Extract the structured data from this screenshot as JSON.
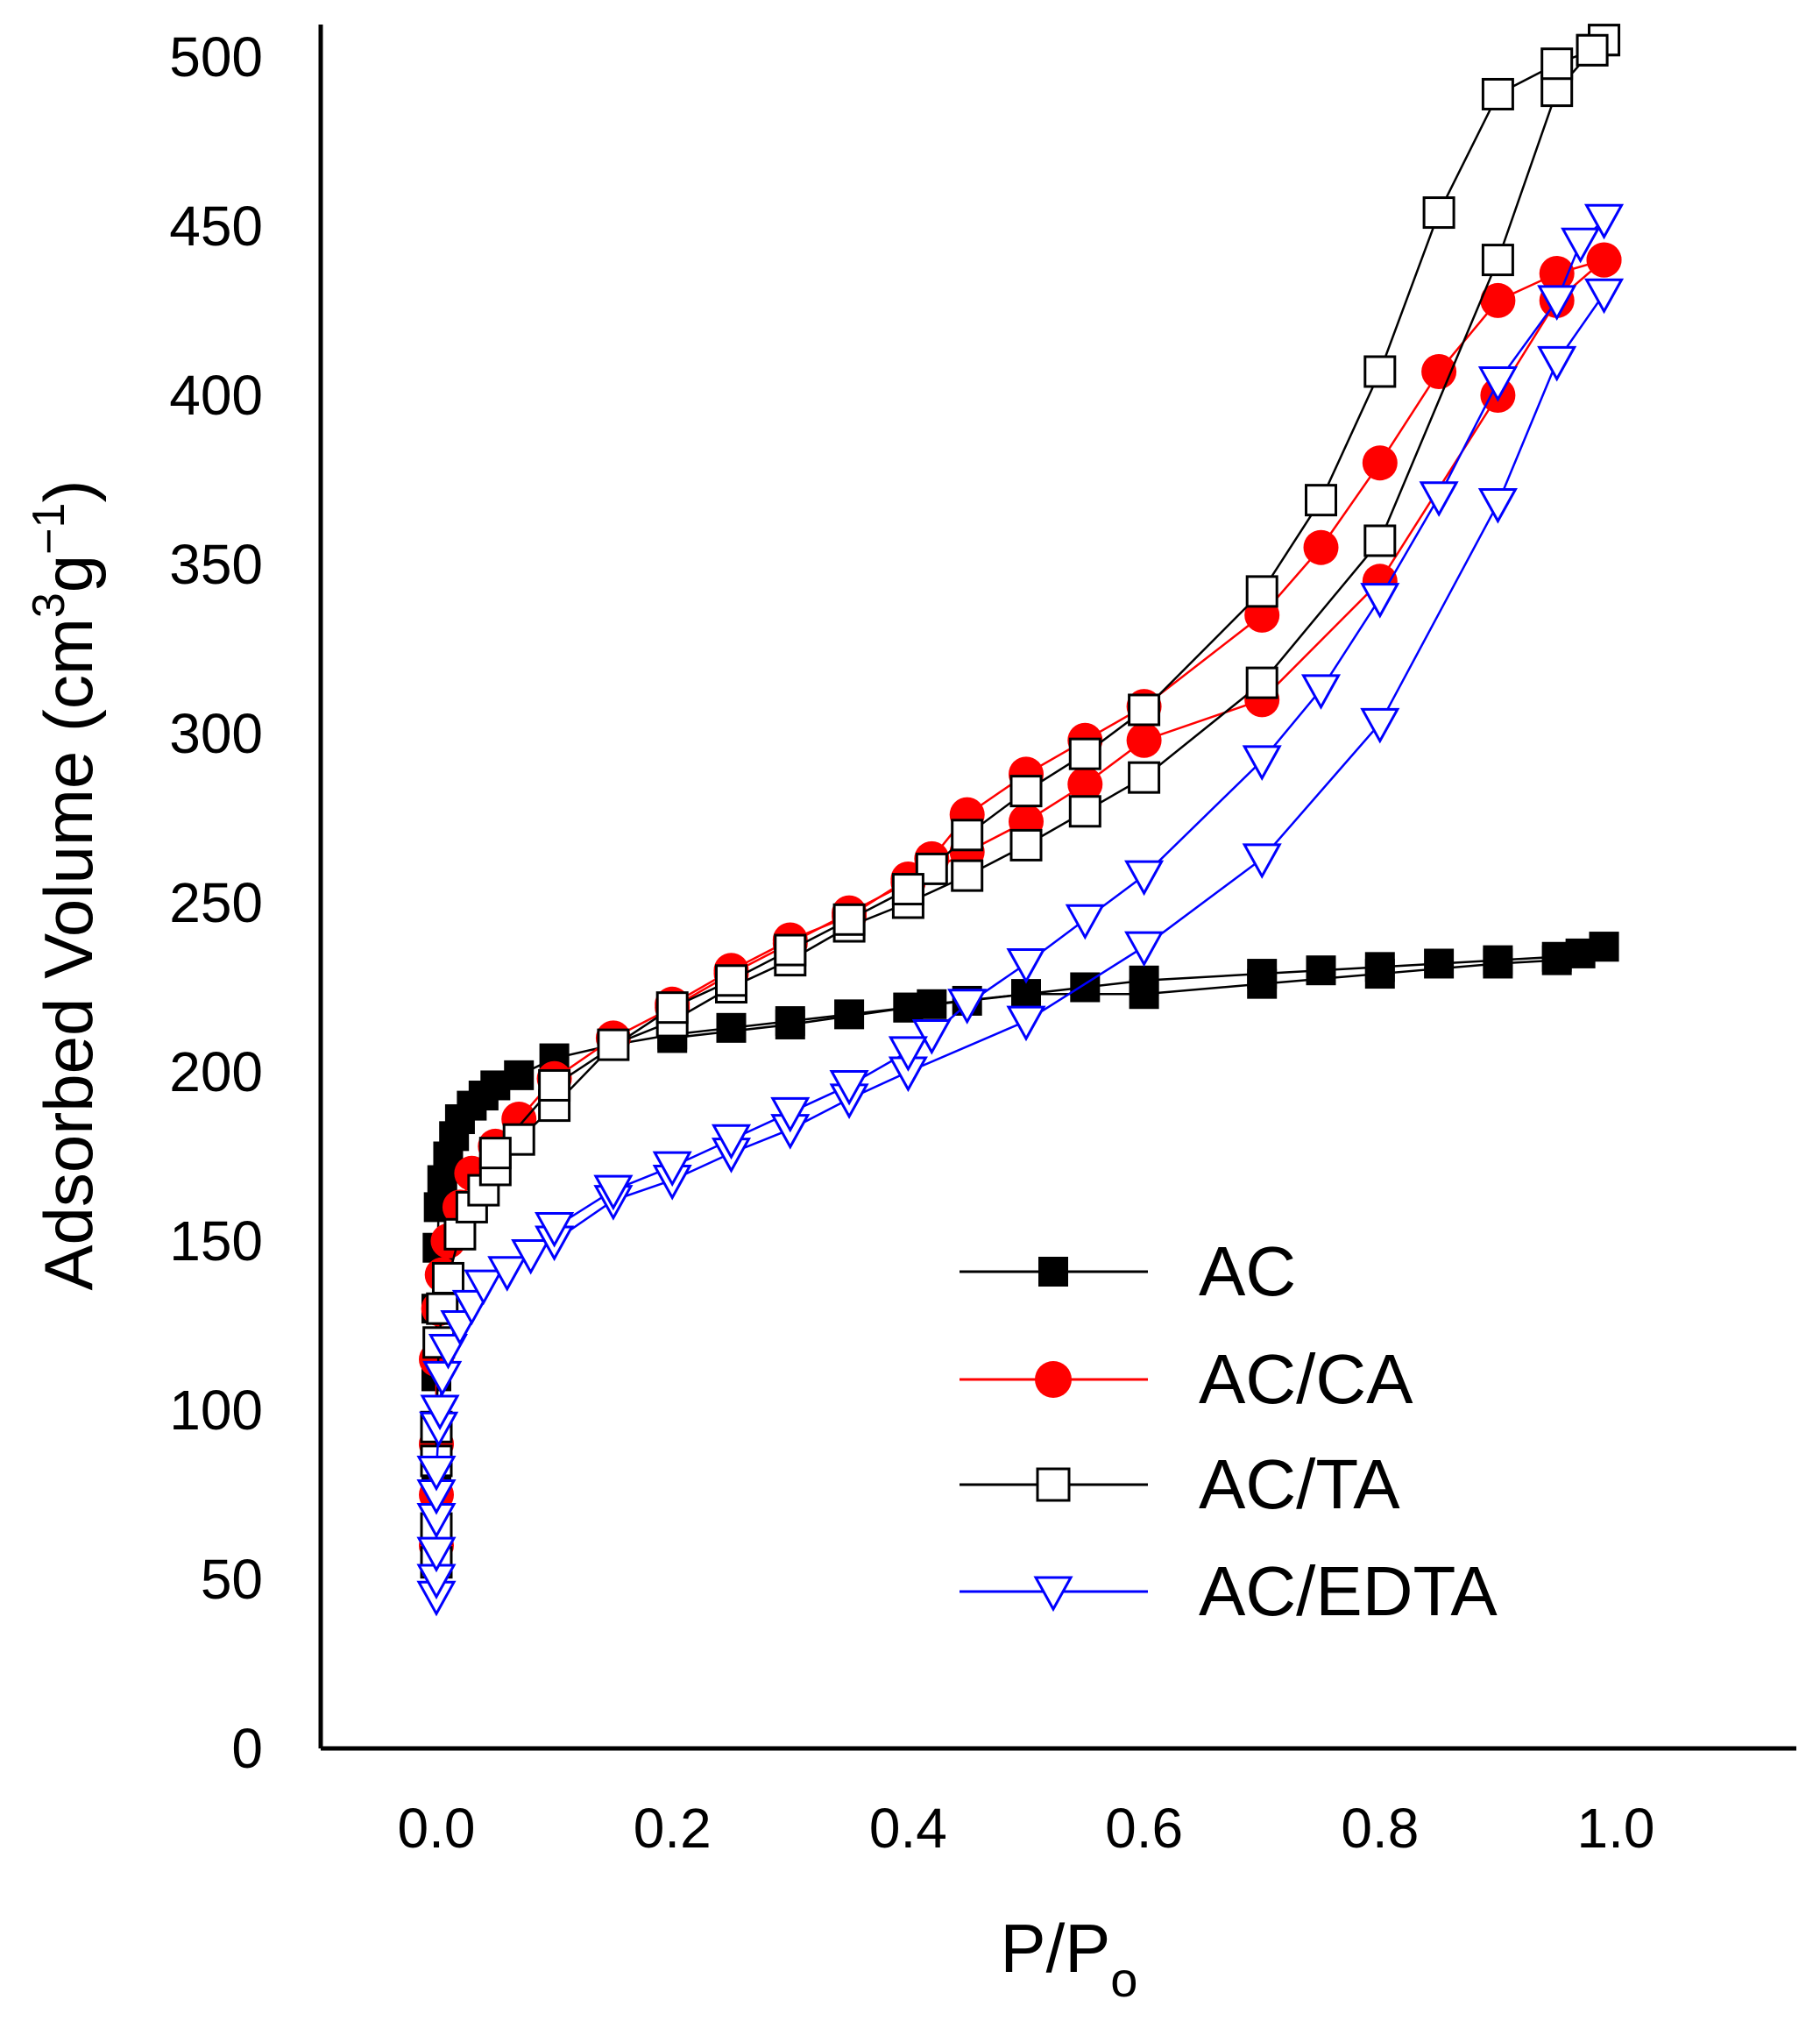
{
  "chart_data": {
    "type": "line",
    "xlabel": "P/P",
    "xlabel_sub": "o",
    "ylabel_main": "Adsorbed Volume (cm",
    "ylabel_sup1": "3",
    "ylabel_mid": "g",
    "ylabel_sup2": "−1",
    "ylabel_end": ")",
    "xlim": [
      -0.1,
      1.15
    ],
    "ylim": [
      0,
      510
    ],
    "xticks": [
      {
        "value": 0.0,
        "label": "0.0"
      },
      {
        "value": 0.2,
        "label": "0.2"
      },
      {
        "value": 0.4,
        "label": "0.4"
      },
      {
        "value": 0.6,
        "label": "0.6"
      },
      {
        "value": 0.8,
        "label": "0.8"
      },
      {
        "value": 1.0,
        "label": "1.0"
      }
    ],
    "yticks": [
      {
        "value": 0,
        "label": "0"
      },
      {
        "value": 50,
        "label": "50"
      },
      {
        "value": 100,
        "label": "100"
      },
      {
        "value": 150,
        "label": "150"
      },
      {
        "value": 200,
        "label": "200"
      },
      {
        "value": 250,
        "label": "250"
      },
      {
        "value": 300,
        "label": "300"
      },
      {
        "value": 350,
        "label": "350"
      },
      {
        "value": 400,
        "label": "400"
      },
      {
        "value": 450,
        "label": "450"
      },
      {
        "value": 500,
        "label": "500"
      }
    ],
    "grid": false,
    "legend_position": "bottom-right",
    "series": [
      {
        "name": "AC",
        "marker": "square-filled",
        "color": "#000000",
        "adsorption": [
          [
            0.0,
            60
          ],
          [
            0.0,
            80
          ],
          [
            0.0,
            110
          ],
          [
            0.0,
            130
          ],
          [
            0.001,
            148
          ],
          [
            0.002,
            160
          ],
          [
            0.005,
            168
          ],
          [
            0.01,
            175
          ],
          [
            0.015,
            181
          ],
          [
            0.02,
            186
          ],
          [
            0.03,
            190
          ],
          [
            0.04,
            193
          ],
          [
            0.05,
            196
          ],
          [
            0.07,
            199
          ],
          [
            0.1,
            204
          ],
          [
            0.15,
            208
          ],
          [
            0.2,
            211
          ],
          [
            0.25,
            213
          ],
          [
            0.3,
            215
          ],
          [
            0.35,
            217
          ],
          [
            0.4,
            219
          ],
          [
            0.45,
            221
          ],
          [
            0.5,
            223
          ],
          [
            0.55,
            225
          ],
          [
            0.6,
            227
          ],
          [
            0.7,
            229
          ],
          [
            0.75,
            230
          ],
          [
            0.8,
            231
          ],
          [
            0.85,
            232
          ],
          [
            0.9,
            233
          ],
          [
            0.95,
            234
          ],
          [
            0.97,
            235
          ],
          [
            0.99,
            237
          ]
        ],
        "desorption": [
          [
            0.99,
            237
          ],
          [
            0.95,
            233
          ],
          [
            0.9,
            232
          ],
          [
            0.8,
            229
          ],
          [
            0.7,
            226
          ],
          [
            0.6,
            223
          ],
          [
            0.5,
            223
          ],
          [
            0.42,
            220
          ],
          [
            0.4,
            219
          ],
          [
            0.3,
            214
          ],
          [
            0.2,
            210
          ]
        ]
      },
      {
        "name": "AC/CA",
        "marker": "circle-filled",
        "color": "#ff0000",
        "adsorption": [
          [
            0.0,
            60
          ],
          [
            0.0,
            75
          ],
          [
            0.0,
            90
          ],
          [
            0.0,
            115
          ],
          [
            0.002,
            130
          ],
          [
            0.005,
            140
          ],
          [
            0.01,
            150
          ],
          [
            0.02,
            160
          ],
          [
            0.03,
            170
          ],
          [
            0.05,
            178
          ],
          [
            0.07,
            186
          ],
          [
            0.1,
            198
          ],
          [
            0.15,
            210
          ],
          [
            0.2,
            219
          ],
          [
            0.25,
            229
          ],
          [
            0.3,
            238
          ],
          [
            0.35,
            247
          ],
          [
            0.4,
            256
          ],
          [
            0.45,
            265
          ],
          [
            0.5,
            274
          ],
          [
            0.55,
            285
          ],
          [
            0.6,
            298
          ],
          [
            0.7,
            310
          ],
          [
            0.8,
            345
          ],
          [
            0.9,
            400
          ],
          [
            0.95,
            428
          ],
          [
            0.99,
            440
          ]
        ],
        "desorption": [
          [
            0.99,
            440
          ],
          [
            0.95,
            436
          ],
          [
            0.9,
            428
          ],
          [
            0.85,
            407
          ],
          [
            0.8,
            380
          ],
          [
            0.75,
            355
          ],
          [
            0.7,
            335
          ],
          [
            0.6,
            308
          ],
          [
            0.55,
            298
          ],
          [
            0.5,
            288
          ],
          [
            0.45,
            276
          ],
          [
            0.42,
            263
          ],
          [
            0.4,
            257
          ],
          [
            0.35,
            246
          ],
          [
            0.3,
            239
          ],
          [
            0.25,
            230
          ],
          [
            0.2,
            220
          ]
        ]
      },
      {
        "name": "AC/TA",
        "marker": "square-open",
        "color": "#000000",
        "adsorption": [
          [
            0.0,
            55
          ],
          [
            0.0,
            65
          ],
          [
            0.0,
            85
          ],
          [
            0.0,
            95
          ],
          [
            0.002,
            120
          ],
          [
            0.005,
            130
          ],
          [
            0.01,
            139
          ],
          [
            0.02,
            152
          ],
          [
            0.03,
            160
          ],
          [
            0.04,
            165
          ],
          [
            0.05,
            171
          ],
          [
            0.07,
            180
          ],
          [
            0.1,
            190
          ],
          [
            0.15,
            208
          ],
          [
            0.2,
            215
          ],
          [
            0.25,
            225
          ],
          [
            0.3,
            233
          ],
          [
            0.35,
            243
          ],
          [
            0.4,
            250
          ],
          [
            0.45,
            258
          ],
          [
            0.5,
            267
          ],
          [
            0.55,
            277
          ],
          [
            0.6,
            287
          ],
          [
            0.7,
            315
          ],
          [
            0.8,
            357
          ],
          [
            0.9,
            440
          ],
          [
            0.95,
            490
          ],
          [
            0.98,
            502
          ],
          [
            0.99,
            505
          ]
        ],
        "desorption": [
          [
            0.99,
            505
          ],
          [
            0.98,
            502
          ],
          [
            0.95,
            498
          ],
          [
            0.9,
            489
          ],
          [
            0.85,
            454
          ],
          [
            0.8,
            407
          ],
          [
            0.75,
            369
          ],
          [
            0.7,
            342
          ],
          [
            0.6,
            307
          ],
          [
            0.55,
            294
          ],
          [
            0.5,
            283
          ],
          [
            0.45,
            270
          ],
          [
            0.42,
            260
          ],
          [
            0.4,
            254
          ],
          [
            0.35,
            245
          ],
          [
            0.3,
            236
          ],
          [
            0.25,
            227
          ],
          [
            0.2,
            219
          ],
          [
            0.1,
            196
          ],
          [
            0.05,
            176
          ]
        ]
      },
      {
        "name": "AC/EDTA",
        "marker": "triangle-down-open",
        "color": "#0000ff",
        "adsorption": [
          [
            0.0,
            45
          ],
          [
            0.0,
            50
          ],
          [
            0.0,
            58
          ],
          [
            0.0,
            68
          ],
          [
            0.0,
            75
          ],
          [
            0.0,
            82
          ],
          [
            0.002,
            95
          ],
          [
            0.003,
            100
          ],
          [
            0.005,
            110
          ],
          [
            0.01,
            118
          ],
          [
            0.02,
            125
          ],
          [
            0.03,
            131
          ],
          [
            0.04,
            137
          ],
          [
            0.06,
            141
          ],
          [
            0.08,
            146
          ],
          [
            0.1,
            150
          ],
          [
            0.15,
            162
          ],
          [
            0.2,
            168
          ],
          [
            0.25,
            176
          ],
          [
            0.3,
            183
          ],
          [
            0.35,
            192
          ],
          [
            0.4,
            200
          ],
          [
            0.5,
            215
          ],
          [
            0.6,
            237
          ],
          [
            0.7,
            263
          ],
          [
            0.8,
            303
          ],
          [
            0.9,
            368
          ],
          [
            0.95,
            410
          ],
          [
            0.99,
            430
          ]
        ],
        "desorption": [
          [
            0.99,
            452
          ],
          [
            0.97,
            445
          ],
          [
            0.95,
            428
          ],
          [
            0.9,
            404
          ],
          [
            0.85,
            370
          ],
          [
            0.8,
            340
          ],
          [
            0.75,
            313
          ],
          [
            0.7,
            292
          ],
          [
            0.6,
            258
          ],
          [
            0.55,
            245
          ],
          [
            0.5,
            232
          ],
          [
            0.45,
            220
          ],
          [
            0.42,
            211
          ],
          [
            0.4,
            206
          ],
          [
            0.35,
            196
          ],
          [
            0.3,
            188
          ],
          [
            0.25,
            180
          ],
          [
            0.2,
            172
          ],
          [
            0.15,
            165
          ],
          [
            0.1,
            154
          ]
        ]
      }
    ]
  }
}
